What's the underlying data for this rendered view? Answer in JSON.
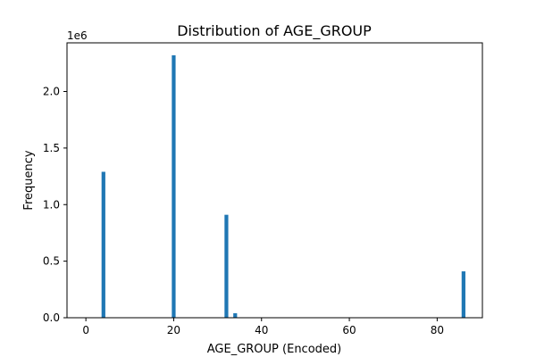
{
  "chart_data": {
    "type": "bar",
    "title": "Distribution of AGE_GROUP",
    "xlabel": "AGE_GROUP (Encoded)",
    "ylabel": "Frequency",
    "y_offset_label": "1e6",
    "xlim": [
      -4.3,
      90.3
    ],
    "ylim": [
      0,
      2.43
    ],
    "x_ticks": [
      0,
      20,
      40,
      60,
      80
    ],
    "x_tick_labels": [
      "0",
      "20",
      "40",
      "60",
      "80"
    ],
    "y_ticks": [
      0.0,
      0.5,
      1.0,
      1.5,
      2.0
    ],
    "y_tick_labels": [
      "0.0",
      "0.5",
      "1.0",
      "1.5",
      "2.0"
    ],
    "bin_width": 0.86,
    "grid": false,
    "bar_color": "#1f77b4",
    "bars": [
      {
        "x": 4,
        "value": 1.29
      },
      {
        "x": 20,
        "value": 2.32
      },
      {
        "x": 32,
        "value": 0.91
      },
      {
        "x": 34,
        "value": 0.04
      },
      {
        "x": 86,
        "value": 0.41
      }
    ]
  }
}
